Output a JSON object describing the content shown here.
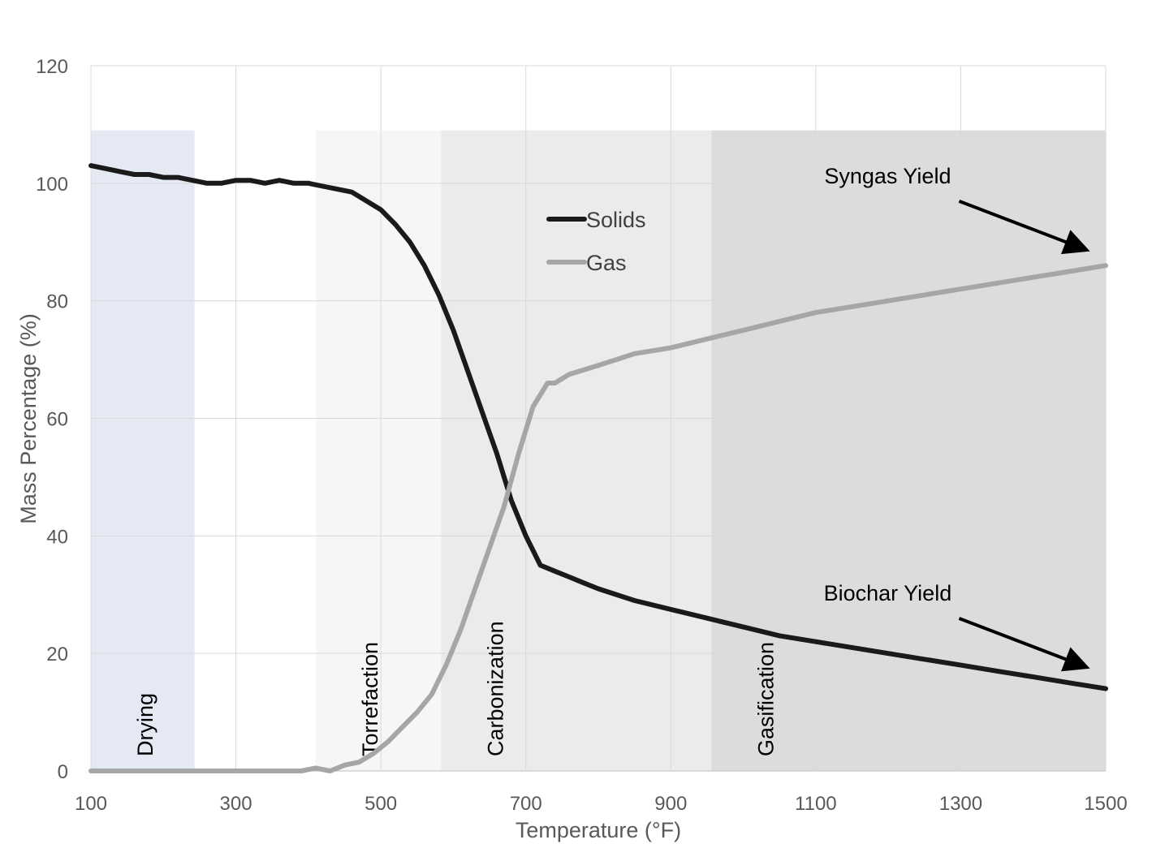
{
  "chart_data": {
    "type": "line",
    "title": "",
    "xlabel": "Temperature (°F)",
    "ylabel": "Mass Percentage (%)",
    "xlim": [
      100,
      1500
    ],
    "ylim": [
      0,
      120
    ],
    "x_ticks": [
      100,
      300,
      500,
      700,
      900,
      1100,
      1300,
      1500
    ],
    "y_ticks": [
      0,
      20,
      40,
      60,
      80,
      100,
      120
    ],
    "grid": true,
    "legend": {
      "placement": "center-top",
      "entries": [
        "Solids",
        "Gas"
      ]
    },
    "regions": [
      {
        "label": "Drying",
        "x": [
          100,
          243
        ],
        "y_top": 109,
        "color": "#e4e9f4"
      },
      {
        "label": "Torrefaction",
        "x": [
          410,
          583
        ],
        "y_top": 109,
        "color": "#f6f6f6"
      },
      {
        "label": "Carbonization",
        "x": [
          583,
          956
        ],
        "y_top": 109,
        "color": "#ebebeb"
      },
      {
        "label": "Gasification",
        "x": [
          956,
          1500
        ],
        "y_top": 109,
        "color": "#dcdcdc"
      }
    ],
    "annotations": [
      {
        "text": "Syngas Yield",
        "x": 1300,
        "y": 100,
        "arrow_to": [
          1490,
          88
        ]
      },
      {
        "text": "Biochar Yield",
        "x": 1300,
        "y": 29,
        "arrow_to": [
          1490,
          17
        ]
      }
    ],
    "series": [
      {
        "name": "Solids",
        "color": "#1a1a1a",
        "x": [
          100,
          120,
          140,
          160,
          180,
          200,
          220,
          240,
          260,
          280,
          300,
          320,
          340,
          360,
          380,
          400,
          420,
          440,
          460,
          480,
          500,
          520,
          540,
          560,
          580,
          600,
          620,
          640,
          660,
          680,
          700,
          720,
          740,
          760,
          780,
          800,
          850,
          900,
          950,
          1000,
          1050,
          1100,
          1150,
          1200,
          1250,
          1300,
          1350,
          1400,
          1450,
          1500
        ],
        "values": [
          103,
          102.5,
          102,
          101.5,
          101.5,
          101,
          101,
          100.5,
          100,
          100,
          100.5,
          100.5,
          100,
          100.5,
          100,
          100,
          99.5,
          99,
          98.5,
          97,
          95.5,
          93,
          90,
          86,
          81,
          75,
          68,
          61,
          54,
          46,
          40,
          35,
          34,
          33,
          32,
          31,
          29,
          27.5,
          26,
          24.5,
          23,
          22,
          21,
          20,
          19,
          18,
          17,
          16,
          15,
          14
        ]
      },
      {
        "name": "Gas",
        "color": "#a6a6a6",
        "x": [
          100,
          200,
          300,
          350,
          390,
          410,
          430,
          450,
          470,
          490,
          510,
          530,
          550,
          570,
          590,
          610,
          630,
          650,
          670,
          690,
          710,
          730,
          740,
          760,
          800,
          850,
          900,
          950,
          1000,
          1050,
          1100,
          1150,
          1200,
          1250,
          1300,
          1350,
          1400,
          1450,
          1500
        ],
        "values": [
          0,
          0,
          0,
          0,
          0,
          0.5,
          0,
          1,
          1.5,
          3,
          5,
          7.5,
          10,
          13,
          18,
          24,
          31,
          38,
          45,
          54,
          62,
          66,
          66,
          67.5,
          69,
          71,
          72,
          73.5,
          75,
          76.5,
          78,
          79,
          80,
          81,
          82,
          83,
          84,
          85,
          86
        ]
      }
    ]
  }
}
